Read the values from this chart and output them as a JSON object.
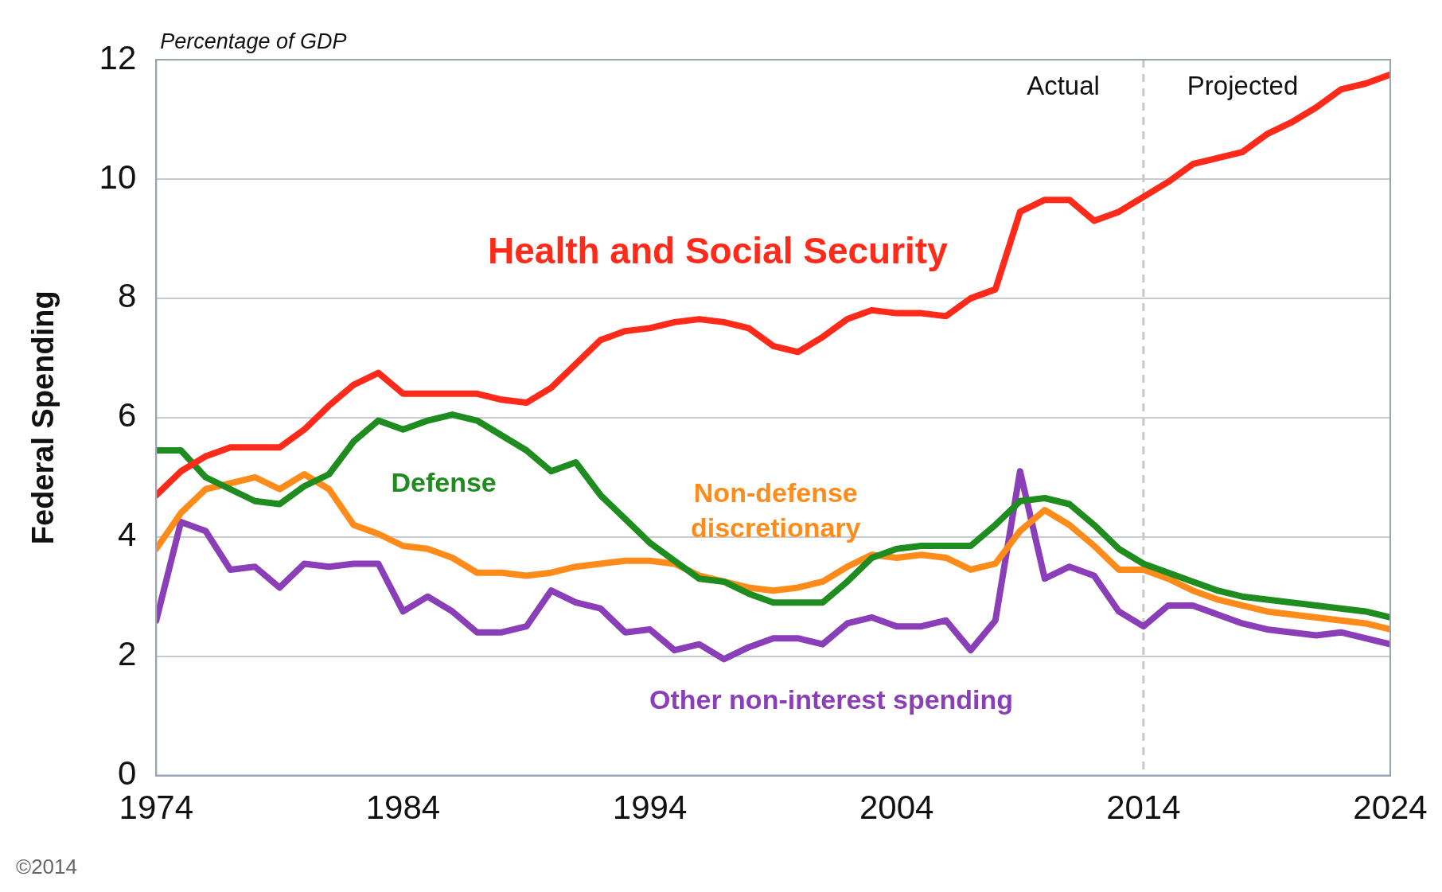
{
  "chart_data": {
    "type": "line",
    "subtitle": "Percentage of GDP",
    "ylabel": "Federal Spending",
    "x": [
      1974,
      1975,
      1976,
      1977,
      1978,
      1979,
      1980,
      1981,
      1982,
      1983,
      1984,
      1985,
      1986,
      1987,
      1988,
      1989,
      1990,
      1991,
      1992,
      1993,
      1994,
      1995,
      1996,
      1997,
      1998,
      1999,
      2000,
      2001,
      2002,
      2003,
      2004,
      2005,
      2006,
      2007,
      2008,
      2009,
      2010,
      2011,
      2012,
      2013,
      2014,
      2015,
      2016,
      2017,
      2018,
      2019,
      2020,
      2021,
      2022,
      2023,
      2024
    ],
    "series": [
      {
        "name": "Health and Social Security",
        "color": "#ff2a1a",
        "values": [
          4.7,
          5.1,
          5.35,
          5.5,
          5.5,
          5.5,
          5.8,
          6.2,
          6.55,
          6.75,
          6.4,
          6.4,
          6.4,
          6.4,
          6.3,
          6.25,
          6.5,
          6.9,
          7.3,
          7.45,
          7.5,
          7.6,
          7.65,
          7.6,
          7.5,
          7.2,
          7.1,
          7.35,
          7.65,
          7.8,
          7.75,
          7.75,
          7.7,
          8.0,
          8.15,
          9.45,
          9.65,
          9.65,
          9.3,
          9.45,
          9.7,
          9.95,
          10.25,
          10.35,
          10.45,
          10.75,
          10.95,
          11.2,
          11.5,
          11.6,
          11.75
        ]
      },
      {
        "name": "Defense",
        "color": "#1e8c1e",
        "values": [
          5.45,
          5.45,
          5.0,
          4.8,
          4.6,
          4.55,
          4.85,
          5.05,
          5.6,
          5.95,
          5.8,
          5.95,
          6.05,
          5.95,
          5.7,
          5.45,
          5.1,
          5.25,
          4.7,
          4.3,
          3.9,
          3.6,
          3.3,
          3.25,
          3.05,
          2.9,
          2.9,
          2.9,
          3.25,
          3.65,
          3.8,
          3.85,
          3.85,
          3.85,
          4.2,
          4.6,
          4.65,
          4.55,
          4.2,
          3.8,
          3.55,
          3.4,
          3.25,
          3.1,
          3.0,
          2.95,
          2.9,
          2.85,
          2.8,
          2.75,
          2.65
        ]
      },
      {
        "name": "Non-defense discretionary",
        "color": "#ff8c1a",
        "values": [
          3.8,
          4.4,
          4.8,
          4.9,
          5.0,
          4.8,
          5.05,
          4.8,
          4.2,
          4.05,
          3.85,
          3.8,
          3.65,
          3.4,
          3.4,
          3.35,
          3.4,
          3.5,
          3.55,
          3.6,
          3.6,
          3.55,
          3.35,
          3.25,
          3.15,
          3.1,
          3.15,
          3.25,
          3.5,
          3.7,
          3.65,
          3.7,
          3.65,
          3.45,
          3.55,
          4.1,
          4.45,
          4.2,
          3.85,
          3.45,
          3.45,
          3.3,
          3.1,
          2.95,
          2.85,
          2.75,
          2.7,
          2.65,
          2.6,
          2.55,
          2.45
        ]
      },
      {
        "name": "Other non-interest spending",
        "color": "#8a3fb8",
        "values": [
          2.6,
          4.25,
          4.1,
          3.45,
          3.5,
          3.15,
          3.55,
          3.5,
          3.55,
          3.55,
          2.75,
          3.0,
          2.75,
          2.4,
          2.4,
          2.5,
          3.1,
          2.9,
          2.8,
          2.4,
          2.45,
          2.1,
          2.2,
          1.95,
          2.15,
          2.3,
          2.3,
          2.2,
          2.55,
          2.65,
          2.5,
          2.5,
          2.6,
          2.1,
          2.6,
          5.1,
          3.3,
          3.5,
          3.35,
          2.75,
          2.5,
          2.85,
          2.85,
          2.7,
          2.55,
          2.45,
          2.4,
          2.35,
          2.4,
          2.3,
          2.2
        ]
      }
    ],
    "xlim": [
      1974,
      2024
    ],
    "xticks": [
      1974,
      1984,
      1994,
      2004,
      2014,
      2024
    ],
    "ylim": [
      0,
      12
    ],
    "yticks": [
      0,
      2,
      4,
      6,
      8,
      10,
      12
    ],
    "grid": "y",
    "legend": false,
    "marker": "none",
    "line_style": "solid",
    "ref_lines": [
      {
        "axis": "x",
        "value": 2014,
        "color": "#c8c8c8",
        "line_style": "dashed"
      }
    ],
    "annotations": [
      "Actual",
      "Projected",
      "©2014"
    ]
  }
}
